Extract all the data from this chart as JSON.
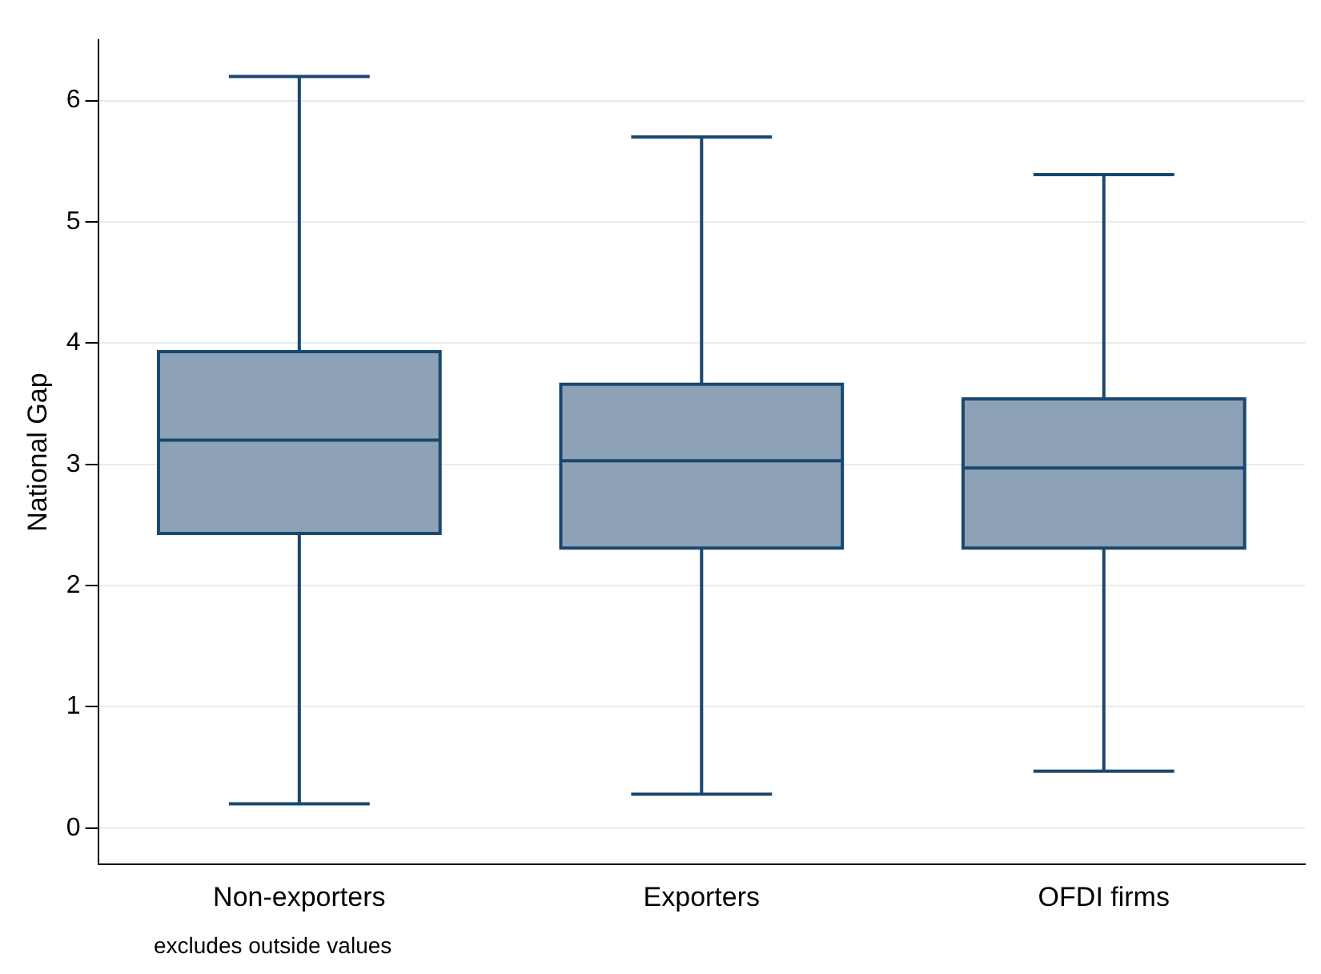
{
  "chart_data": {
    "type": "box",
    "ylabel": "National Gap",
    "categories": [
      "Non-exporters",
      "Exporters",
      "OFDI firms"
    ],
    "boxes": [
      {
        "low": 0.2,
        "q1": 2.43,
        "median": 3.2,
        "q3": 3.93,
        "high": 6.2
      },
      {
        "low": 0.28,
        "q1": 2.31,
        "median": 3.03,
        "q3": 3.66,
        "high": 5.7
      },
      {
        "low": 0.47,
        "q1": 2.31,
        "median": 2.97,
        "q3": 3.54,
        "high": 5.39
      }
    ],
    "color": "#8da2b7",
    "ylim": [
      -0.3,
      6.5
    ],
    "yticks": [
      0,
      1,
      2,
      3,
      4,
      5,
      6
    ],
    "grid": "y",
    "legend": false,
    "annotations": [
      "excludes outside values"
    ]
  }
}
